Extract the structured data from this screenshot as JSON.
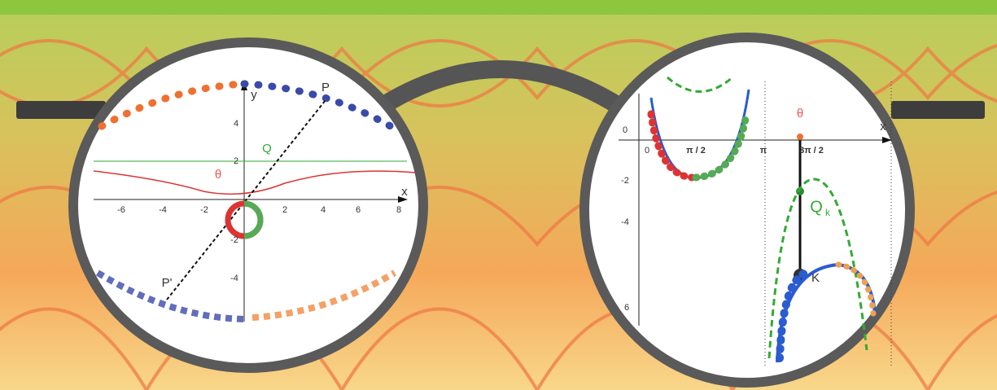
{
  "left_lens": {
    "axis_x": "x",
    "axis_y": "y",
    "x_ticks": [
      "-6",
      "-4",
      "-2",
      "2",
      "4",
      "6",
      "8"
    ],
    "y_ticks": [
      "4",
      "2",
      "-2",
      "-4"
    ],
    "points": [
      "P",
      "Q",
      "θ",
      "P'"
    ]
  },
  "right_lens": {
    "axis_x": "x",
    "x_ticks": [
      "0",
      "π / 2",
      "π",
      "3π / 2"
    ],
    "y_ticks": [
      "0",
      "-2",
      "-4",
      "6"
    ],
    "points": [
      "θ",
      "Q",
      "k",
      "K"
    ]
  }
}
